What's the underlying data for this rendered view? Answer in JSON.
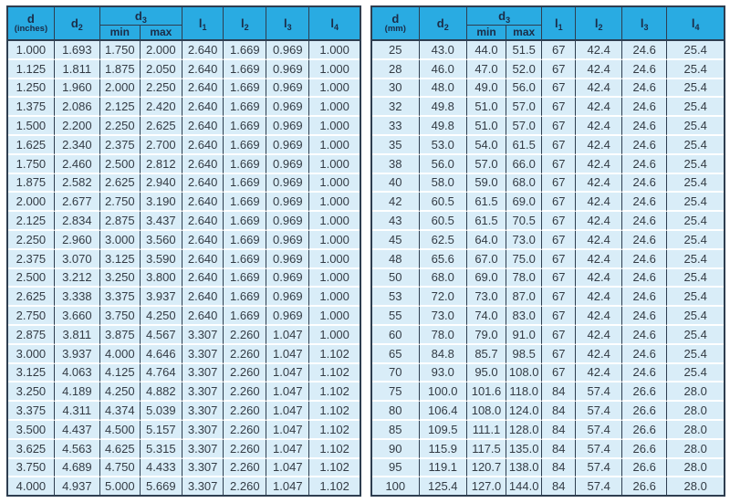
{
  "colors": {
    "header_bg": "#29abe2",
    "header_text": "#1b2c47",
    "row_bg": "#d9edf8",
    "row_separator": "#ffffff",
    "grid_border": "#2e3e50",
    "cell_text": "#333b44"
  },
  "left_table": {
    "unit_col": {
      "base": "d",
      "note": "(inches)"
    },
    "d2": {
      "base": "d",
      "sub": "2"
    },
    "d3": {
      "base": "d",
      "sub": "3"
    },
    "min_label": "min",
    "max_label": "max",
    "l1": {
      "base": "l",
      "sub": "1"
    },
    "l2": {
      "base": "l",
      "sub": "2"
    },
    "l3": {
      "base": "l",
      "sub": "3"
    },
    "l4": {
      "base": "l",
      "sub": "4"
    },
    "rows": [
      [
        "1.000",
        "1.693",
        "1.750",
        "2.000",
        "2.640",
        "1.669",
        "0.969",
        "1.000"
      ],
      [
        "1.125",
        "1.811",
        "1.875",
        "2.050",
        "2.640",
        "1.669",
        "0.969",
        "1.000"
      ],
      [
        "1.250",
        "1.960",
        "2.000",
        "2.250",
        "2.640",
        "1.669",
        "0.969",
        "1.000"
      ],
      [
        "1.375",
        "2.086",
        "2.125",
        "2.420",
        "2.640",
        "1.669",
        "0.969",
        "1.000"
      ],
      [
        "1.500",
        "2.200",
        "2.250",
        "2.625",
        "2.640",
        "1.669",
        "0.969",
        "1.000"
      ],
      [
        "1.625",
        "2.340",
        "2.375",
        "2.700",
        "2.640",
        "1.669",
        "0.969",
        "1.000"
      ],
      [
        "1.750",
        "2.460",
        "2.500",
        "2.812",
        "2.640",
        "1.669",
        "0.969",
        "1.000"
      ],
      [
        "1.875",
        "2.582",
        "2.625",
        "2.940",
        "2.640",
        "1.669",
        "0.969",
        "1.000"
      ],
      [
        "2.000",
        "2.677",
        "2.750",
        "3.190",
        "2.640",
        "1.669",
        "0.969",
        "1.000"
      ],
      [
        "2.125",
        "2.834",
        "2.875",
        "3.437",
        "2.640",
        "1.669",
        "0.969",
        "1.000"
      ],
      [
        "2.250",
        "2.960",
        "3.000",
        "3.560",
        "2.640",
        "1.669",
        "0.969",
        "1.000"
      ],
      [
        "2.375",
        "3.070",
        "3.125",
        "3.590",
        "2.640",
        "1.669",
        "0.969",
        "1.000"
      ],
      [
        "2.500",
        "3.212",
        "3.250",
        "3.800",
        "2.640",
        "1.669",
        "0.969",
        "1.000"
      ],
      [
        "2.625",
        "3.338",
        "3.375",
        "3.937",
        "2.640",
        "1.669",
        "0.969",
        "1.000"
      ],
      [
        "2.750",
        "3.660",
        "3.750",
        "4.250",
        "2.640",
        "1.669",
        "0.969",
        "1.000"
      ],
      [
        "2.875",
        "3.811",
        "3.875",
        "4.567",
        "3.307",
        "2.260",
        "1.047",
        "1.000"
      ],
      [
        "3.000",
        "3.937",
        "4.000",
        "4.646",
        "3.307",
        "2.260",
        "1.047",
        "1.102"
      ],
      [
        "3.125",
        "4.063",
        "4.125",
        "4.764",
        "3.307",
        "2.260",
        "1.047",
        "1.102"
      ],
      [
        "3.250",
        "4.189",
        "4.250",
        "4.882",
        "3.307",
        "2.260",
        "1.047",
        "1.102"
      ],
      [
        "3.375",
        "4.311",
        "4.374",
        "5.039",
        "3.307",
        "2.260",
        "1.047",
        "1.102"
      ],
      [
        "3.500",
        "4.437",
        "4.500",
        "5.157",
        "3.307",
        "2.260",
        "1.047",
        "1.102"
      ],
      [
        "3.625",
        "4.563",
        "4.625",
        "5.315",
        "3.307",
        "2.260",
        "1.047",
        "1.102"
      ],
      [
        "3.750",
        "4.689",
        "4.750",
        "4.433",
        "3.307",
        "2.260",
        "1.047",
        "1.102"
      ],
      [
        "4.000",
        "4.937",
        "5.000",
        "5.669",
        "3.307",
        "2.260",
        "1.047",
        "1.102"
      ]
    ]
  },
  "right_table": {
    "unit_col": {
      "base": "d",
      "note": "(mm)"
    },
    "d2": {
      "base": "d",
      "sub": "2"
    },
    "d3": {
      "base": "d",
      "sub": "3"
    },
    "min_label": "min",
    "max_label": "max",
    "l1": {
      "base": "l",
      "sub": "1"
    },
    "l2": {
      "base": "l",
      "sub": "2"
    },
    "l3": {
      "base": "l",
      "sub": "3"
    },
    "l4": {
      "base": "l",
      "sub": "4"
    },
    "rows": [
      [
        "25",
        "43.0",
        "44.0",
        "51.5",
        "67",
        "42.4",
        "24.6",
        "25.4"
      ],
      [
        "28",
        "46.0",
        "47.0",
        "52.0",
        "67",
        "42.4",
        "24.6",
        "25.4"
      ],
      [
        "30",
        "48.0",
        "49.0",
        "56.0",
        "67",
        "42.4",
        "24.6",
        "25.4"
      ],
      [
        "32",
        "49.8",
        "51.0",
        "57.0",
        "67",
        "42.4",
        "24.6",
        "25.4"
      ],
      [
        "33",
        "49.8",
        "51.0",
        "57.0",
        "67",
        "42.4",
        "24.6",
        "25.4"
      ],
      [
        "35",
        "53.0",
        "54.0",
        "61.5",
        "67",
        "42.4",
        "24.6",
        "25.4"
      ],
      [
        "38",
        "56.0",
        "57.0",
        "66.0",
        "67",
        "42.4",
        "24.6",
        "25.4"
      ],
      [
        "40",
        "58.0",
        "59.0",
        "68.0",
        "67",
        "42.4",
        "24.6",
        "25.4"
      ],
      [
        "42",
        "60.5",
        "61.5",
        "69.0",
        "67",
        "42.4",
        "24.6",
        "25.4"
      ],
      [
        "43",
        "60.5",
        "61.5",
        "70.5",
        "67",
        "42.4",
        "24.6",
        "25.4"
      ],
      [
        "45",
        "62.5",
        "64.0",
        "73.0",
        "67",
        "42.4",
        "24.6",
        "25.4"
      ],
      [
        "48",
        "65.6",
        "67.0",
        "75.0",
        "67",
        "42.4",
        "24.6",
        "25.4"
      ],
      [
        "50",
        "68.0",
        "69.0",
        "78.0",
        "67",
        "42.4",
        "24.6",
        "25.4"
      ],
      [
        "53",
        "72.0",
        "73.0",
        "87.0",
        "67",
        "42.4",
        "24.6",
        "25.4"
      ],
      [
        "55",
        "73.0",
        "74.0",
        "83.0",
        "67",
        "42.4",
        "24.6",
        "25.4"
      ],
      [
        "60",
        "78.0",
        "79.0",
        "91.0",
        "67",
        "42.4",
        "24.6",
        "25.4"
      ],
      [
        "65",
        "84.8",
        "85.7",
        "98.5",
        "67",
        "42.4",
        "24.6",
        "25.4"
      ],
      [
        "70",
        "93.0",
        "95.0",
        "108.0",
        "67",
        "42.4",
        "24.6",
        "25.4"
      ],
      [
        "75",
        "100.0",
        "101.6",
        "118.0",
        "84",
        "57.4",
        "26.6",
        "28.0"
      ],
      [
        "80",
        "106.4",
        "108.0",
        "124.0",
        "84",
        "57.4",
        "26.6",
        "28.0"
      ],
      [
        "85",
        "109.5",
        "111.1",
        "128.0",
        "84",
        "57.4",
        "26.6",
        "28.0"
      ],
      [
        "90",
        "115.9",
        "117.5",
        "135.0",
        "84",
        "57.4",
        "26.6",
        "28.0"
      ],
      [
        "95",
        "119.1",
        "120.7",
        "138.0",
        "84",
        "57.4",
        "26.6",
        "28.0"
      ],
      [
        "100",
        "125.4",
        "127.0",
        "144.0",
        "84",
        "57.4",
        "26.6",
        "28.0"
      ]
    ]
  }
}
